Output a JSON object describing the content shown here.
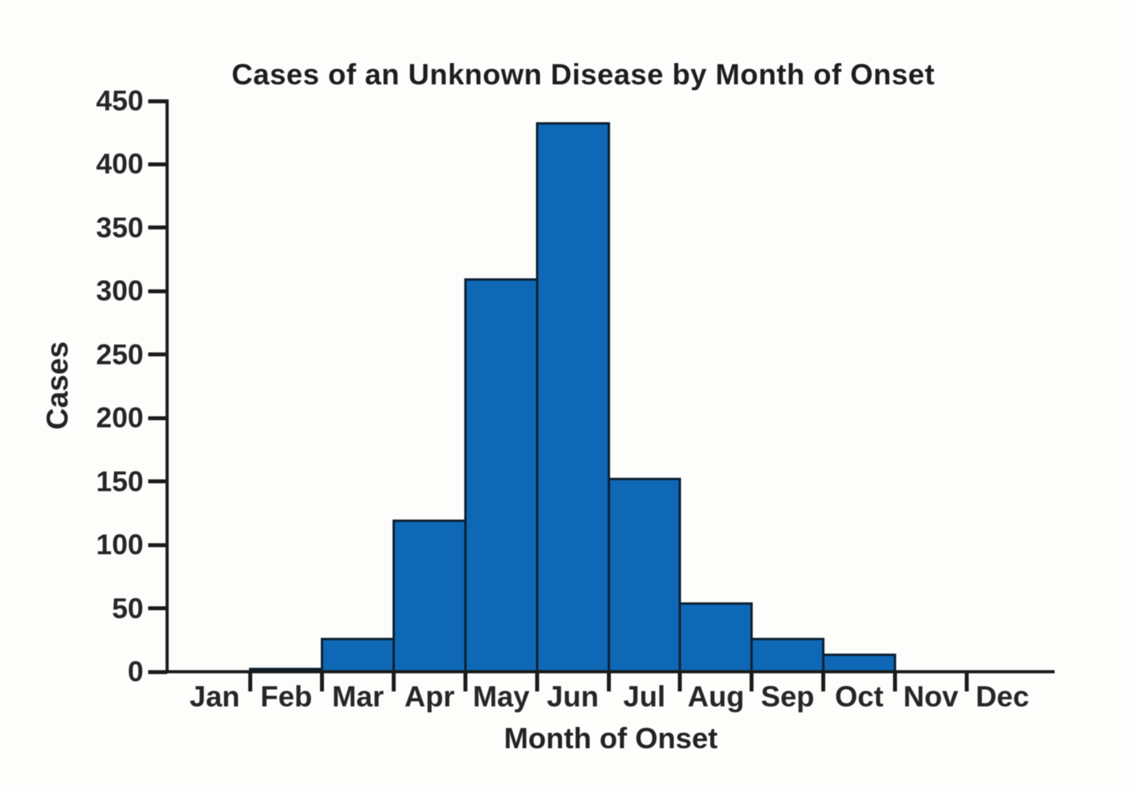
{
  "chart_data": {
    "type": "bar",
    "style": "histogram-touching-bars",
    "title": "Cases of an Unknown Disease by Month of Onset",
    "xlabel": "Month of Onset",
    "ylabel": "Cases",
    "categories": [
      "Jan",
      "Feb",
      "Mar",
      "Apr",
      "May",
      "Jun",
      "Jul",
      "Aug",
      "Sep",
      "Oct",
      "Nov",
      "Dec"
    ],
    "values": [
      0,
      3,
      27,
      120,
      310,
      433,
      153,
      55,
      27,
      14,
      0,
      0
    ],
    "ylim": [
      0,
      450
    ],
    "ytick_step": 50,
    "grid": false,
    "legend": "none",
    "colors": {
      "bar_fill": "#0e68b6",
      "bar_border": "#0d2031",
      "axis": "#1b1b1b",
      "text": "#232323",
      "background": "#fdfdfb"
    }
  }
}
